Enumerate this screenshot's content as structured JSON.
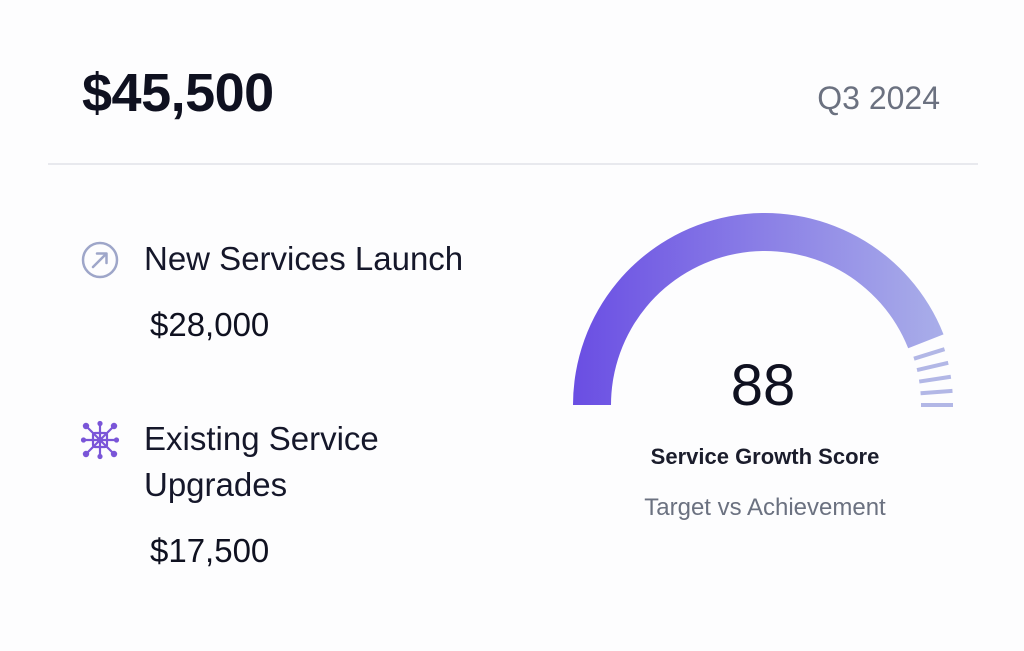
{
  "header": {
    "total": "$45,500",
    "period": "Q3 2024"
  },
  "items": [
    {
      "label": "New Services Launch",
      "value": "$28,000",
      "icon": "arrow-up-right-circle-icon"
    },
    {
      "label": "Existing Service Upgrades",
      "value": "$17,500",
      "icon": "network-nodes-icon"
    }
  ],
  "gauge": {
    "score": "88",
    "score_max": 100,
    "label": "Service Growth Score",
    "sublabel": "Target vs Achievement",
    "color_start": "#6a4ee3",
    "color_end": "#a9aee9",
    "tick_color": "#b2b7e6"
  },
  "colors": {
    "icon_gray": "#9ea6c9",
    "icon_purple": "#7a55d8"
  }
}
